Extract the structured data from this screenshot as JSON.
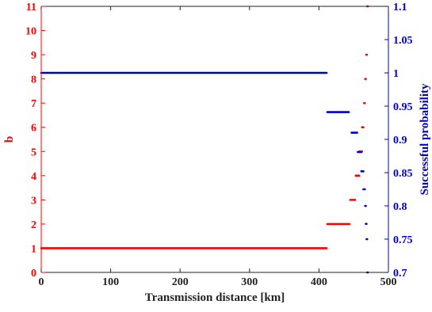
{
  "chart_data": {
    "type": "scatter",
    "title": "",
    "xlabel": "Transmission distance [km]",
    "ylabel_left": "b",
    "ylabel_right": "Successful probability",
    "xlim": [
      0,
      500
    ],
    "ylim_left": [
      0,
      11
    ],
    "ylim_right": [
      0.7,
      1.1
    ],
    "xticks": [
      "0",
      "100",
      "200",
      "300",
      "400",
      "500"
    ],
    "yticks_left": [
      "0",
      "1",
      "2",
      "3",
      "4",
      "5",
      "6",
      "7",
      "8",
      "9",
      "10",
      "11"
    ],
    "yticks_right": [
      "0.7",
      "0.75",
      "0.8",
      "0.85",
      "0.9",
      "0.95",
      "1",
      "1.05",
      "1.1"
    ],
    "colors": {
      "left": "#ff0000",
      "right": "#0000cc"
    },
    "grid": false,
    "series": [
      {
        "axis": "left",
        "segments": [
          {
            "x": [
              0,
              411
            ],
            "y": 1
          },
          {
            "x": [
              412,
              444
            ],
            "y": 2
          },
          {
            "x": [
              445,
              452
            ],
            "y": 3
          },
          {
            "x": [
              453,
              458
            ],
            "y": 4
          },
          {
            "x": [
              458,
              462
            ],
            "y": 5
          },
          {
            "x": [
              462,
              464
            ],
            "y": 6
          },
          {
            "x": [
              465,
              466
            ],
            "y": 7
          },
          {
            "x": [
              466.5,
              467.5
            ],
            "y": 8
          },
          {
            "x": [
              468,
              469
            ],
            "y": 9
          },
          {
            "x": [
              469.5,
              470.5
            ],
            "y": 11
          }
        ]
      },
      {
        "axis": "right",
        "segments": [
          {
            "x": [
              0,
              411
            ],
            "y": 1.0
          },
          {
            "x": [
              412,
              443
            ],
            "y": 0.941
          },
          {
            "x": [
              447,
              455
            ],
            "y": 0.91
          },
          {
            "x": [
              456,
              461
            ],
            "y": 0.881
          },
          {
            "x": [
              461,
              464
            ],
            "y": 0.852
          },
          {
            "x": [
              464,
              466
            ],
            "y": 0.825
          },
          {
            "x": [
              466.5,
              467.5
            ],
            "y": 0.8
          },
          {
            "x": [
              467.5,
              468.5
            ],
            "y": 0.773
          },
          {
            "x": [
              468.5,
              469.5
            ],
            "y": 0.75
          },
          {
            "x": [
              469.5,
              470.5
            ],
            "y": 0.7
          }
        ]
      }
    ]
  }
}
